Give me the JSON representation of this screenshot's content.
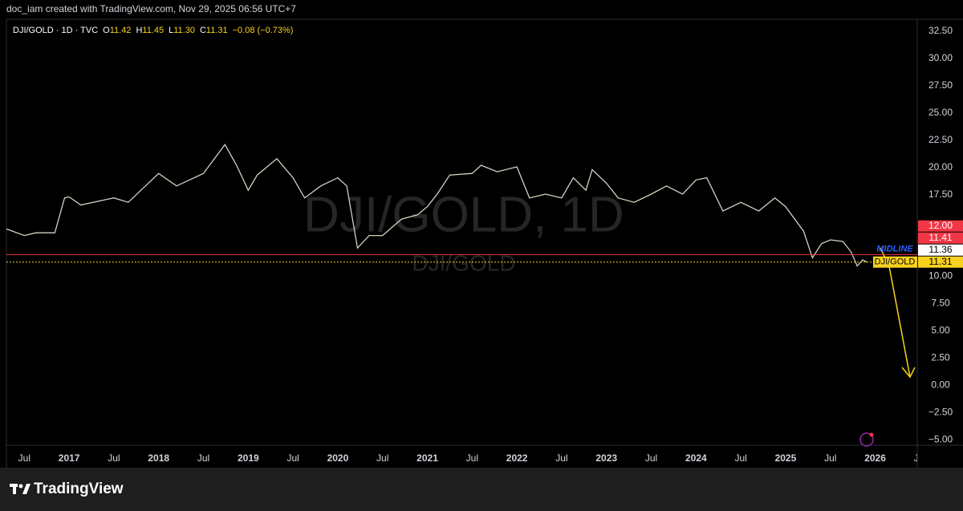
{
  "header": {
    "credit": "doc_iam created with TradingView.com, Nov 29, 2025 06:56 UTC+7"
  },
  "legend": {
    "symbol": "DJI/GOLD · 1D · TVC",
    "ohlc": [
      {
        "label": "O",
        "value": "11.42"
      },
      {
        "label": "H",
        "value": "11.45"
      },
      {
        "label": "L",
        "value": "11.30"
      },
      {
        "label": "C",
        "value": "11.31"
      }
    ],
    "change": "−0.08 (−0.73%)"
  },
  "watermark": {
    "title": "DJI/GOLD, 1D",
    "subtitle": "DJI/GOLD"
  },
  "footer": {
    "brand": "TradingView"
  },
  "chart_data": {
    "type": "line",
    "color": "#d8d0c0",
    "grid": false,
    "x": [
      2016.3,
      2016.5,
      2016.63,
      2016.84,
      2016.95,
      2017.0,
      2017.13,
      2017.5,
      2017.66,
      2018.0,
      2018.2,
      2018.5,
      2018.74,
      2018.87,
      2019.0,
      2019.1,
      2019.32,
      2019.5,
      2019.63,
      2019.81,
      2020.0,
      2020.1,
      2020.22,
      2020.35,
      2020.5,
      2020.71,
      2020.89,
      2021.0,
      2021.11,
      2021.25,
      2021.5,
      2021.6,
      2021.78,
      2022.0,
      2022.14,
      2022.32,
      2022.5,
      2022.63,
      2022.77,
      2022.84,
      2023.0,
      2023.13,
      2023.31,
      2023.5,
      2023.67,
      2023.85,
      2024.0,
      2024.12,
      2024.3,
      2024.5,
      2024.7,
      2024.88,
      2025.0,
      2025.2,
      2025.3,
      2025.4,
      2025.5,
      2025.64,
      2025.73,
      2025.8,
      2025.86,
      2025.91
    ],
    "series": [
      {
        "name": "DJI/GOLD",
        "values": [
          14.35,
          13.75,
          14.0,
          14.0,
          17.2,
          17.3,
          16.55,
          17.2,
          16.8,
          19.45,
          18.3,
          19.45,
          22.1,
          20.2,
          17.9,
          19.3,
          20.8,
          19.05,
          17.2,
          18.3,
          19.05,
          18.3,
          12.6,
          13.75,
          13.75,
          15.25,
          15.65,
          16.4,
          17.55,
          19.3,
          19.45,
          20.2,
          19.6,
          20.05,
          17.2,
          17.55,
          17.2,
          19.05,
          17.9,
          19.8,
          18.55,
          17.2,
          16.8,
          17.55,
          18.3,
          17.55,
          18.85,
          19.05,
          16.0,
          16.8,
          16.0,
          17.2,
          16.4,
          14.15,
          11.7,
          13.0,
          13.35,
          13.2,
          12.25,
          10.95,
          11.5,
          11.31
        ]
      }
    ],
    "xlim": [
      2016.3,
      2026.47
    ],
    "xticks": [
      {
        "value": 2016.5,
        "label": "Jul"
      },
      2017,
      {
        "value": 2017.5,
        "label": "Jul"
      },
      2018,
      {
        "value": 2018.5,
        "label": "Jul"
      },
      2019,
      {
        "value": 2019.5,
        "label": "Jul"
      },
      2020,
      {
        "value": 2020.5,
        "label": "Jul"
      },
      2021,
      {
        "value": 2021.5,
        "label": "Jul"
      },
      2022,
      {
        "value": 2022.5,
        "label": "Jul"
      },
      2023,
      {
        "value": 2023.5,
        "label": "Jul"
      },
      2024,
      {
        "value": 2024.5,
        "label": "Jul"
      },
      2025,
      {
        "value": 2025.5,
        "label": "Jul"
      },
      2026,
      {
        "value": 2026.5,
        "label": "Jul"
      }
    ],
    "ylim": [
      -5.5,
      33.6
    ],
    "yticks": [
      {
        "value": 32.5,
        "label": "32.50"
      },
      {
        "value": 30,
        "label": "30.00"
      },
      {
        "value": 27.5,
        "label": "27.50"
      },
      {
        "value": 25,
        "label": "25.00"
      },
      {
        "value": 22.5,
        "label": "22.50"
      },
      {
        "value": 20,
        "label": "20.00"
      },
      {
        "value": 17.5,
        "label": "17.50"
      },
      {
        "value": 10,
        "label": "10.00"
      },
      {
        "value": 7.5,
        "label": "7.50"
      },
      {
        "value": 5,
        "label": "5.00"
      },
      {
        "value": 2.5,
        "label": "2.50"
      },
      {
        "value": 0,
        "label": "0.00"
      },
      {
        "value": -2.5,
        "label": "−2.50"
      },
      {
        "value": -5,
        "label": "−5.00"
      }
    ],
    "price_lines": [
      {
        "value": 12.0,
        "label": "12.00",
        "color": "#f23645",
        "style": "solid"
      },
      {
        "value": 11.41,
        "label": "11.41",
        "color": "#f23645",
        "style": "none"
      },
      {
        "name": "MIDLINE",
        "name_color": "#2962ff",
        "value": 11.36,
        "label": "11.36",
        "color": "#ffffff",
        "style": "none"
      },
      {
        "name": "DJI/GOLD",
        "value": 11.31,
        "label": "11.31",
        "color": "#f7d11e",
        "style": "dotted"
      }
    ]
  }
}
